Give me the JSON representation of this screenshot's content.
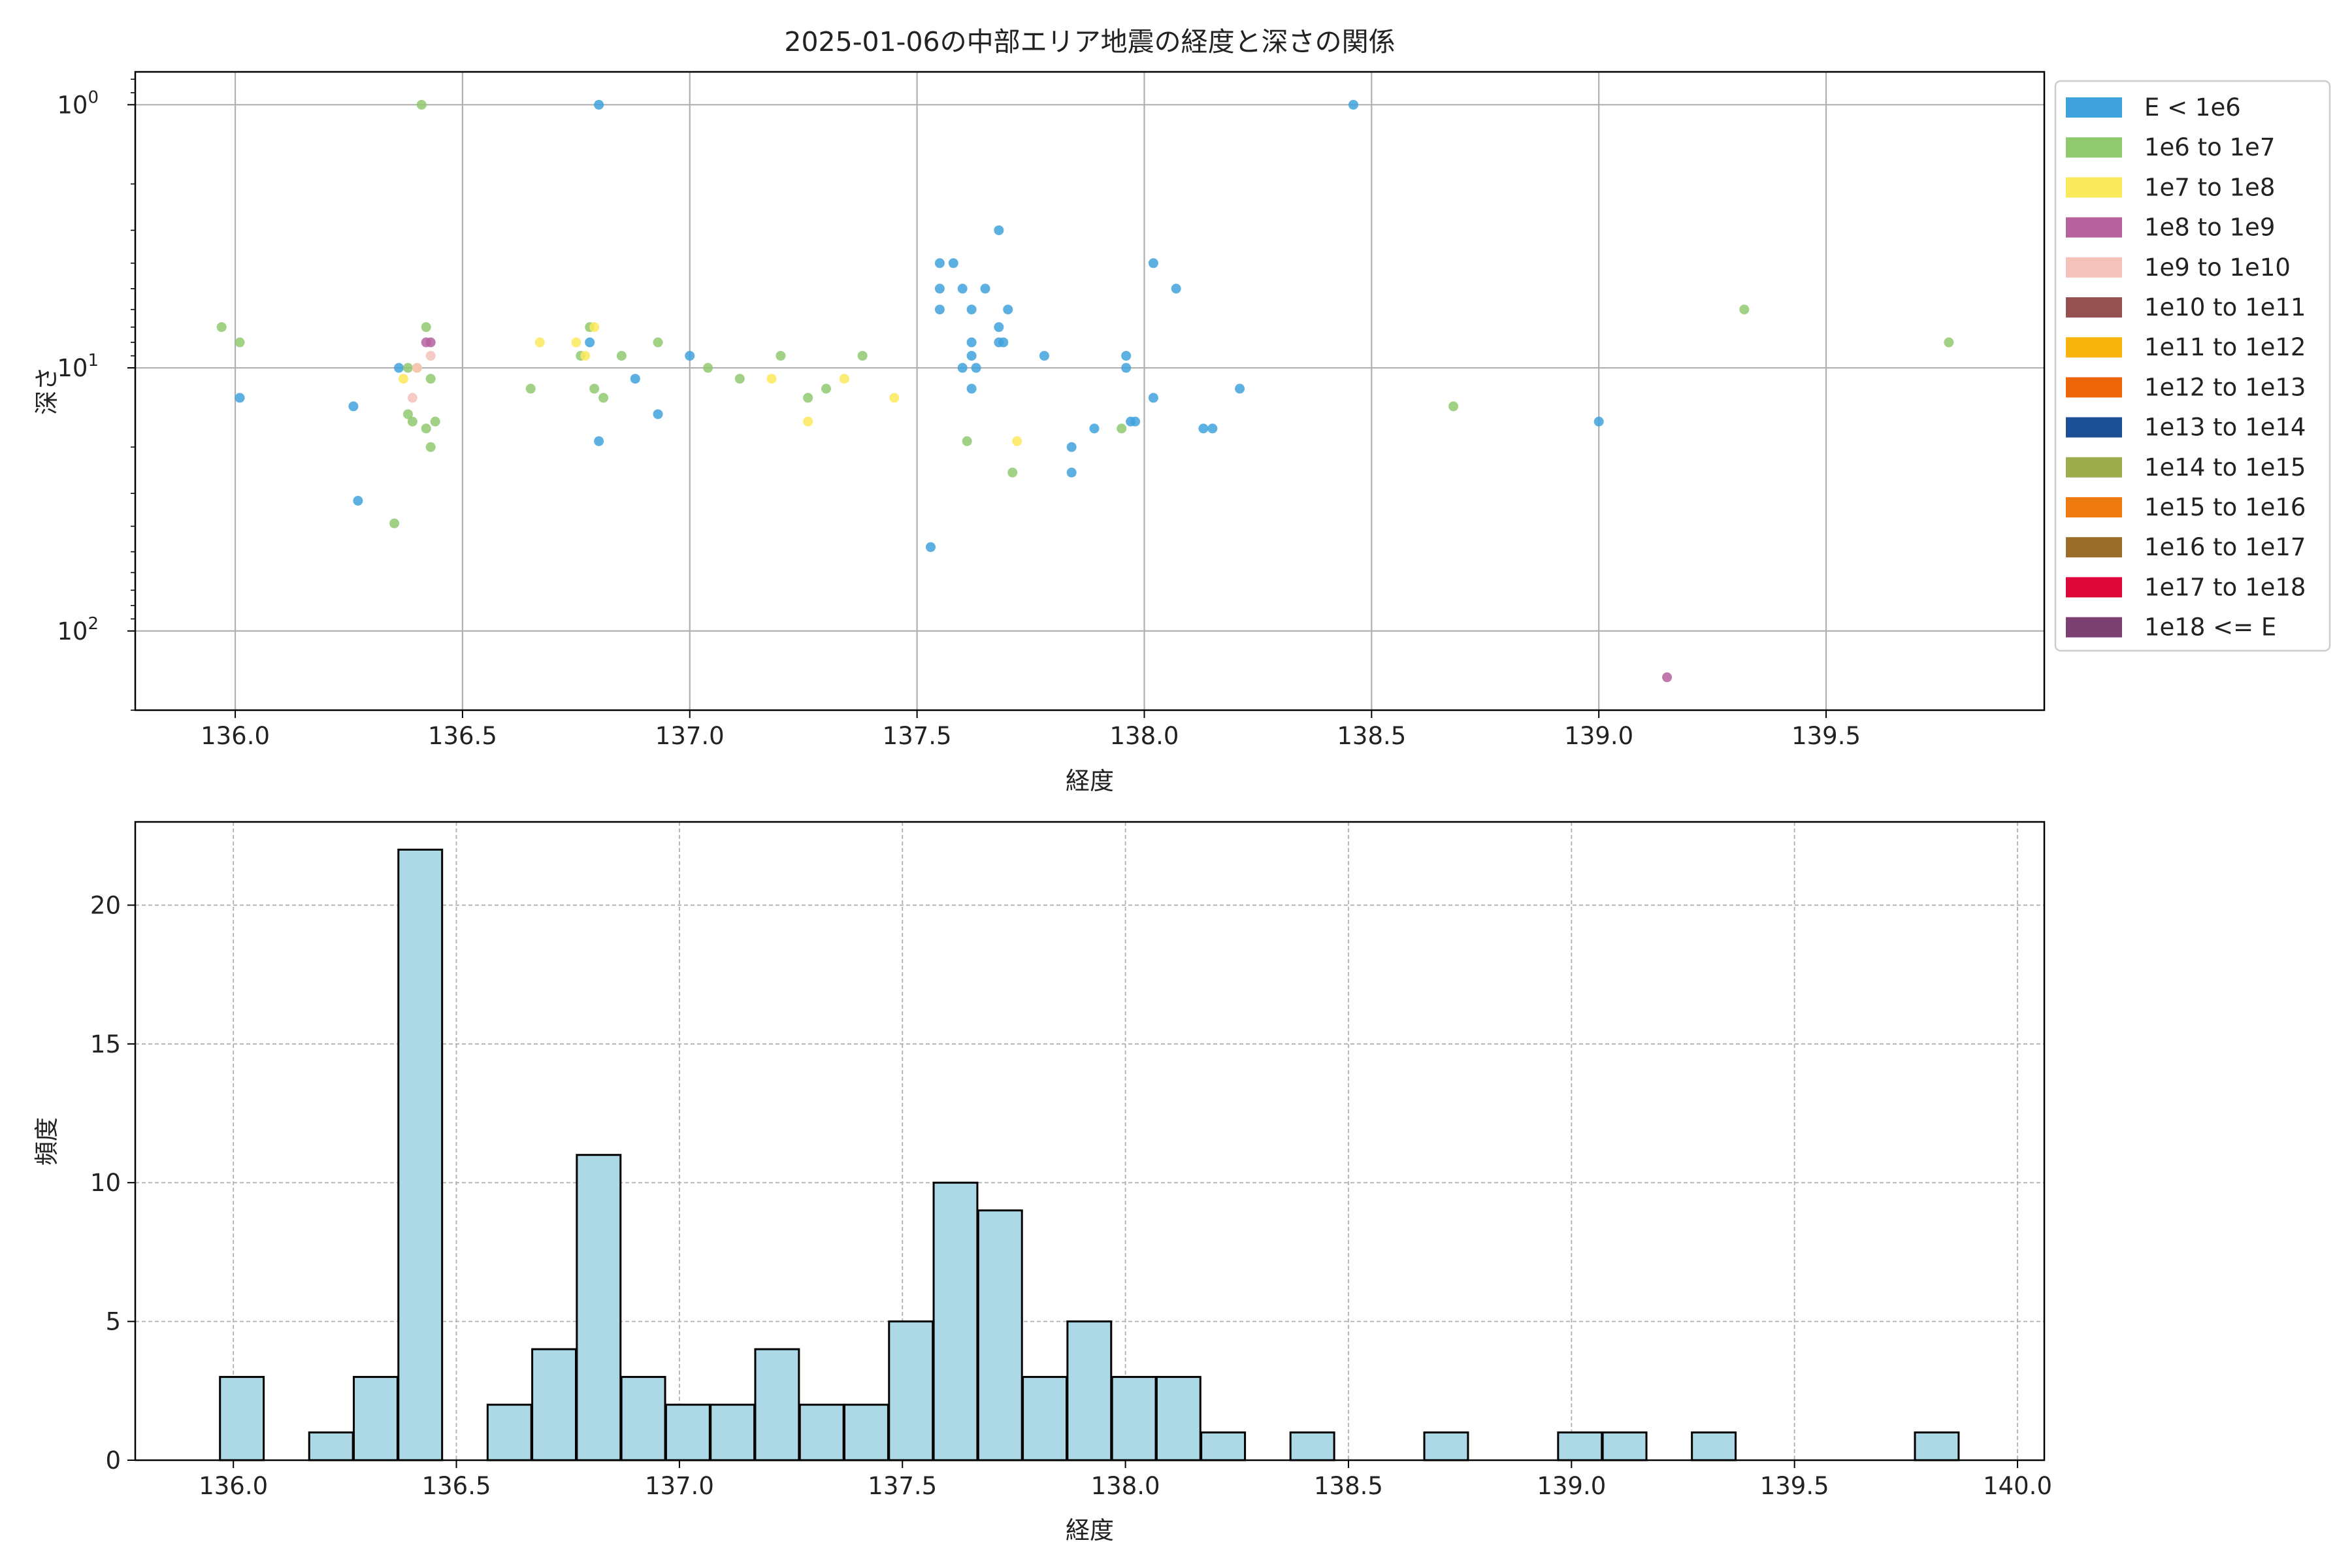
{
  "title": "2025-01-06の中部エリア地震の経度と深さの関係",
  "scatter_panel": {
    "xlabel": "経度",
    "ylabel": "深さ",
    "x_ticks": [
      "136.0",
      "136.5",
      "137.0",
      "137.5",
      "138.0",
      "138.5",
      "139.0",
      "139.5"
    ],
    "y_ticks": [
      {
        "base": "10",
        "exp": "0"
      },
      {
        "base": "10",
        "exp": "1"
      },
      {
        "base": "10",
        "exp": "2"
      }
    ]
  },
  "hist_panel": {
    "xlabel": "経度",
    "ylabel": "頻度",
    "x_ticks": [
      "136.0",
      "136.5",
      "137.0",
      "137.5",
      "138.0",
      "138.5",
      "139.0",
      "139.5",
      "140.0"
    ],
    "y_ticks": [
      "0",
      "5",
      "10",
      "15",
      "20"
    ]
  },
  "legend": [
    {
      "label": "E < 1e6",
      "color": "#3fa2dd"
    },
    {
      "label": "1e6 to 1e7",
      "color": "#90c96f"
    },
    {
      "label": "1e7 to 1e8",
      "color": "#fbe95c"
    },
    {
      "label": "1e8 to 1e9",
      "color": "#b5629f"
    },
    {
      "label": "1e9 to 1e10",
      "color": "#f5c1bb"
    },
    {
      "label": "1e10 to 1e11",
      "color": "#955151"
    },
    {
      "label": "1e11 to 1e12",
      "color": "#f8b40c"
    },
    {
      "label": "1e12 to 1e13",
      "color": "#ed6409"
    },
    {
      "label": "1e13 to 1e14",
      "color": "#1c4f95"
    },
    {
      "label": "1e14 to 1e15",
      "color": "#9dad4d"
    },
    {
      "label": "1e15 to 1e16",
      "color": "#ef7b10"
    },
    {
      "label": "1e16 to 1e17",
      "color": "#9a6d2a"
    },
    {
      "label": "1e17 to 1e18",
      "color": "#de0838"
    },
    {
      "label": "1e18 <= E",
      "color": "#7b4070"
    }
  ],
  "chart_data": [
    {
      "type": "scatter",
      "title": "2025-01-06の中部エリア地震の経度と深さの関係",
      "xlabel": "経度",
      "ylabel": "深さ",
      "y_scale": "log",
      "y_inverted": true,
      "xlim": [
        135.78,
        139.98
      ],
      "ylim": [
        0.75,
        200
      ],
      "grid": true,
      "legend_position": "outside right",
      "series": [
        {
          "name": "E < 1e6",
          "color": "#3fa2dd",
          "points": [
            [
              136.01,
              13
            ],
            [
              136.26,
              14
            ],
            [
              136.27,
              32
            ],
            [
              136.36,
              10
            ],
            [
              136.8,
              1
            ],
            [
              136.78,
              8
            ],
            [
              136.8,
              19
            ],
            [
              136.88,
              11
            ],
            [
              136.93,
              15
            ],
            [
              137.0,
              9
            ],
            [
              137.53,
              48
            ],
            [
              137.55,
              4
            ],
            [
              137.55,
              5
            ],
            [
              137.55,
              6
            ],
            [
              137.58,
              4
            ],
            [
              137.6,
              5
            ],
            [
              137.6,
              10
            ],
            [
              137.62,
              6
            ],
            [
              137.62,
              8
            ],
            [
              137.62,
              9
            ],
            [
              137.63,
              10
            ],
            [
              137.62,
              12
            ],
            [
              137.65,
              5
            ],
            [
              137.68,
              3
            ],
            [
              137.68,
              7
            ],
            [
              137.68,
              8
            ],
            [
              137.69,
              8
            ],
            [
              137.7,
              6
            ],
            [
              137.78,
              9
            ],
            [
              137.84,
              20
            ],
            [
              137.84,
              25
            ],
            [
              137.89,
              17
            ],
            [
              137.96,
              9
            ],
            [
              137.96,
              10
            ],
            [
              137.97,
              16
            ],
            [
              137.98,
              16
            ],
            [
              138.02,
              4
            ],
            [
              138.02,
              13
            ],
            [
              138.07,
              5
            ],
            [
              138.13,
              17
            ],
            [
              138.15,
              17
            ],
            [
              138.21,
              12
            ],
            [
              138.46,
              1
            ],
            [
              139.0,
              16
            ]
          ]
        },
        {
          "name": "1e6 to 1e7",
          "color": "#90c96f",
          "points": [
            [
              135.97,
              7
            ],
            [
              136.01,
              8
            ],
            [
              136.35,
              39
            ],
            [
              136.38,
              10
            ],
            [
              136.38,
              15
            ],
            [
              136.39,
              16
            ],
            [
              136.41,
              1
            ],
            [
              136.42,
              7
            ],
            [
              136.43,
              11
            ],
            [
              136.43,
              20
            ],
            [
              136.42,
              17
            ],
            [
              136.44,
              16
            ],
            [
              136.65,
              12
            ],
            [
              136.76,
              9
            ],
            [
              136.78,
              7
            ],
            [
              136.79,
              12
            ],
            [
              136.81,
              13
            ],
            [
              136.85,
              9
            ],
            [
              136.93,
              8
            ],
            [
              137.04,
              10
            ],
            [
              137.11,
              11
            ],
            [
              137.2,
              9
            ],
            [
              137.26,
              13
            ],
            [
              137.3,
              12
            ],
            [
              137.38,
              9
            ],
            [
              137.61,
              19
            ],
            [
              137.71,
              25
            ],
            [
              137.95,
              17
            ],
            [
              138.68,
              14
            ],
            [
              139.32,
              6
            ],
            [
              139.77,
              8
            ]
          ]
        },
        {
          "name": "1e7 to 1e8",
          "color": "#fbe95c",
          "points": [
            [
              136.37,
              11
            ],
            [
              136.4,
              10
            ],
            [
              136.67,
              8
            ],
            [
              136.75,
              8
            ],
            [
              136.77,
              9
            ],
            [
              136.79,
              7
            ],
            [
              137.18,
              11
            ],
            [
              137.26,
              16
            ],
            [
              137.34,
              11
            ],
            [
              137.45,
              13
            ],
            [
              137.72,
              19
            ]
          ]
        },
        {
          "name": "1e8 to 1e9",
          "color": "#b5629f",
          "points": [
            [
              136.42,
              8
            ],
            [
              136.43,
              8
            ],
            [
              139.15,
              150
            ]
          ]
        },
        {
          "name": "1e9 to 1e10",
          "color": "#f5c1bb",
          "points": [
            [
              136.39,
              13
            ],
            [
              136.4,
              10
            ],
            [
              136.43,
              9
            ]
          ]
        }
      ]
    },
    {
      "type": "bar",
      "chart_kind": "histogram",
      "xlabel": "経度",
      "ylabel": "頻度",
      "xlim": [
        135.78,
        140.06
      ],
      "ylim": [
        0,
        23
      ],
      "grid": true,
      "bin_width": 0.098,
      "bins": [
        {
          "x0": 135.97,
          "value": 3
        },
        {
          "x0": 136.17,
          "value": 1
        },
        {
          "x0": 136.27,
          "value": 3
        },
        {
          "x0": 136.37,
          "value": 22
        },
        {
          "x0": 136.57,
          "value": 2
        },
        {
          "x0": 136.67,
          "value": 4
        },
        {
          "x0": 136.77,
          "value": 11
        },
        {
          "x0": 136.87,
          "value": 3
        },
        {
          "x0": 136.97,
          "value": 2
        },
        {
          "x0": 137.07,
          "value": 2
        },
        {
          "x0": 137.17,
          "value": 4
        },
        {
          "x0": 137.27,
          "value": 2
        },
        {
          "x0": 137.37,
          "value": 2
        },
        {
          "x0": 137.47,
          "value": 5
        },
        {
          "x0": 137.57,
          "value": 10
        },
        {
          "x0": 137.67,
          "value": 9
        },
        {
          "x0": 137.77,
          "value": 3
        },
        {
          "x0": 137.87,
          "value": 5
        },
        {
          "x0": 137.97,
          "value": 3
        },
        {
          "x0": 138.07,
          "value": 3
        },
        {
          "x0": 138.17,
          "value": 1
        },
        {
          "x0": 138.37,
          "value": 1
        },
        {
          "x0": 138.67,
          "value": 1
        },
        {
          "x0": 138.97,
          "value": 1
        },
        {
          "x0": 139.07,
          "value": 1
        },
        {
          "x0": 139.27,
          "value": 1
        },
        {
          "x0": 139.77,
          "value": 1
        }
      ]
    }
  ]
}
